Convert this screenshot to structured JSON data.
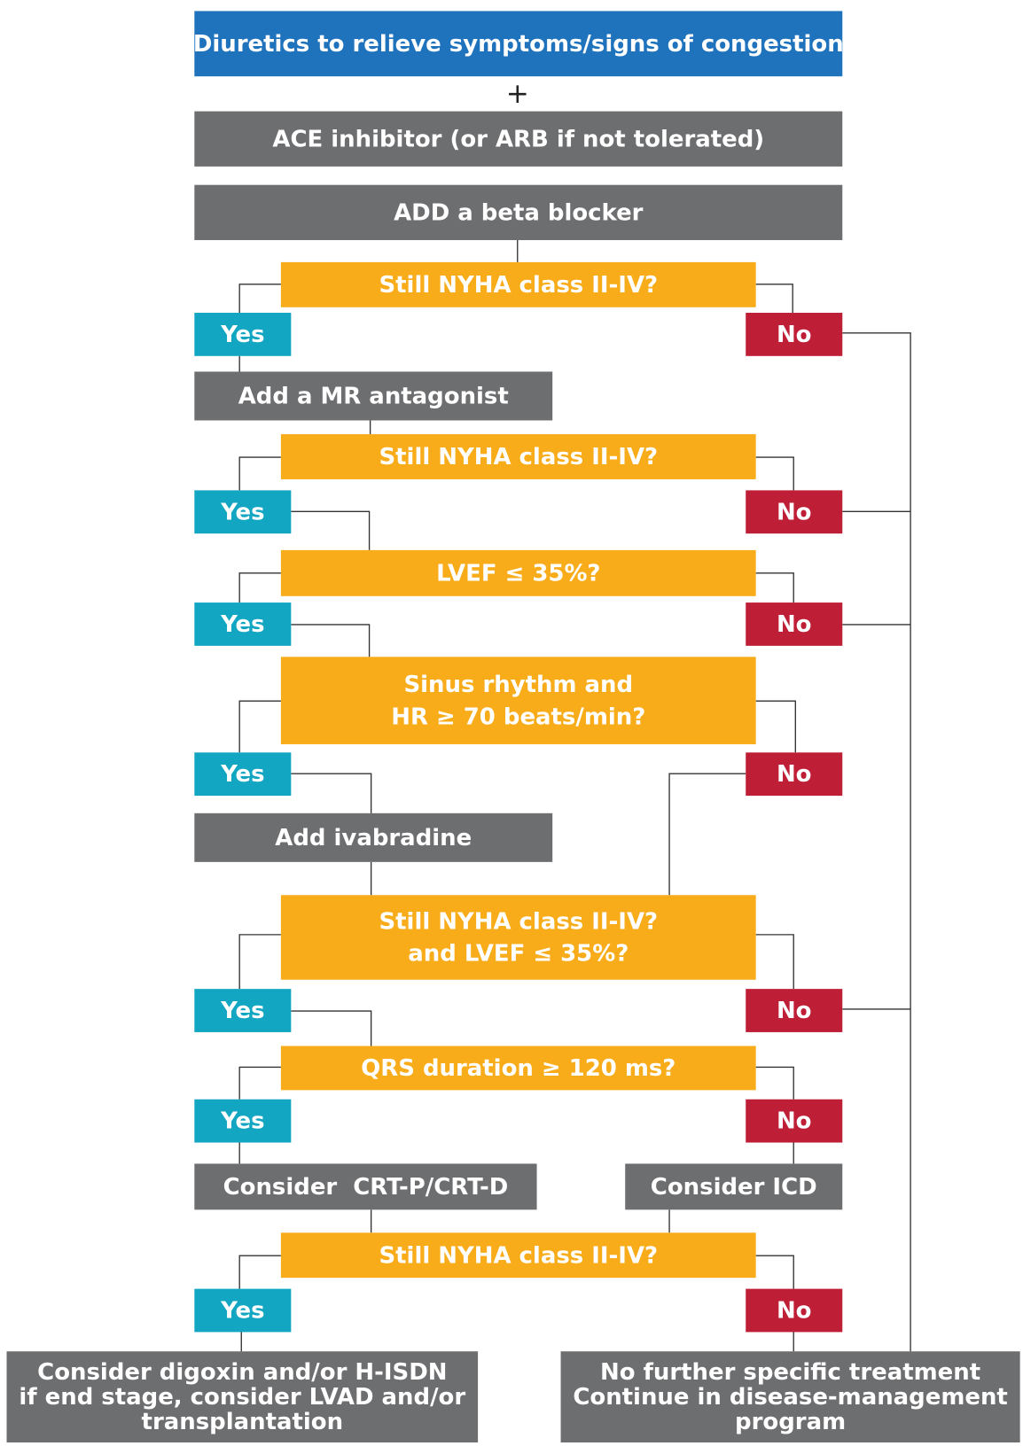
{
  "plus": "+",
  "nodes": [
    {
      "lines": [
        "Diuretics to relieve symptoms/signs of congestion"
      ]
    },
    {
      "lines": [
        "ACE inhibitor (or ARB if not tolerated)"
      ]
    },
    {
      "lines": [
        "ADD a beta blocker"
      ]
    },
    {
      "lines": [
        "Still NYHA class II-IV?"
      ]
    },
    {
      "lines": [
        "Yes"
      ]
    },
    {
      "lines": [
        "No"
      ]
    },
    {
      "lines": [
        "Add a MR antagonist"
      ]
    },
    {
      "lines": [
        "Still NYHA class II-IV?"
      ]
    },
    {
      "lines": [
        "Yes"
      ]
    },
    {
      "lines": [
        "No"
      ]
    },
    {
      "lines": [
        "LVEF ≤ 35%?"
      ]
    },
    {
      "lines": [
        "Yes"
      ]
    },
    {
      "lines": [
        "No"
      ]
    },
    {
      "lines": [
        "Sinus rhythm and",
        "HR ≥ 70 beats/min?"
      ]
    },
    {
      "lines": [
        "Yes"
      ]
    },
    {
      "lines": [
        "No"
      ]
    },
    {
      "lines": [
        "Add ivabradine"
      ]
    },
    {
      "lines": [
        "Still NYHA class II-IV?",
        "and LVEF ≤ 35%?"
      ]
    },
    {
      "lines": [
        "Yes"
      ]
    },
    {
      "lines": [
        "No"
      ]
    },
    {
      "lines": [
        "QRS duration ≥ 120 ms?"
      ]
    },
    {
      "lines": [
        "Yes"
      ]
    },
    {
      "lines": [
        "No"
      ]
    },
    {
      "lines": [
        "Consider  CRT-P/CRT-D"
      ]
    },
    {
      "lines": [
        "Consider ICD"
      ]
    },
    {
      "lines": [
        "Still NYHA class II-IV?"
      ]
    },
    {
      "lines": [
        "Yes"
      ]
    },
    {
      "lines": [
        "No"
      ]
    },
    {
      "lines": [
        "Consider digoxin and/or H-ISDN",
        "if end stage, consider LVAD and/or",
        "transplantation"
      ]
    },
    {
      "lines": [
        "No further specific treatment",
        "Continue in disease-management",
        "program"
      ]
    }
  ]
}
